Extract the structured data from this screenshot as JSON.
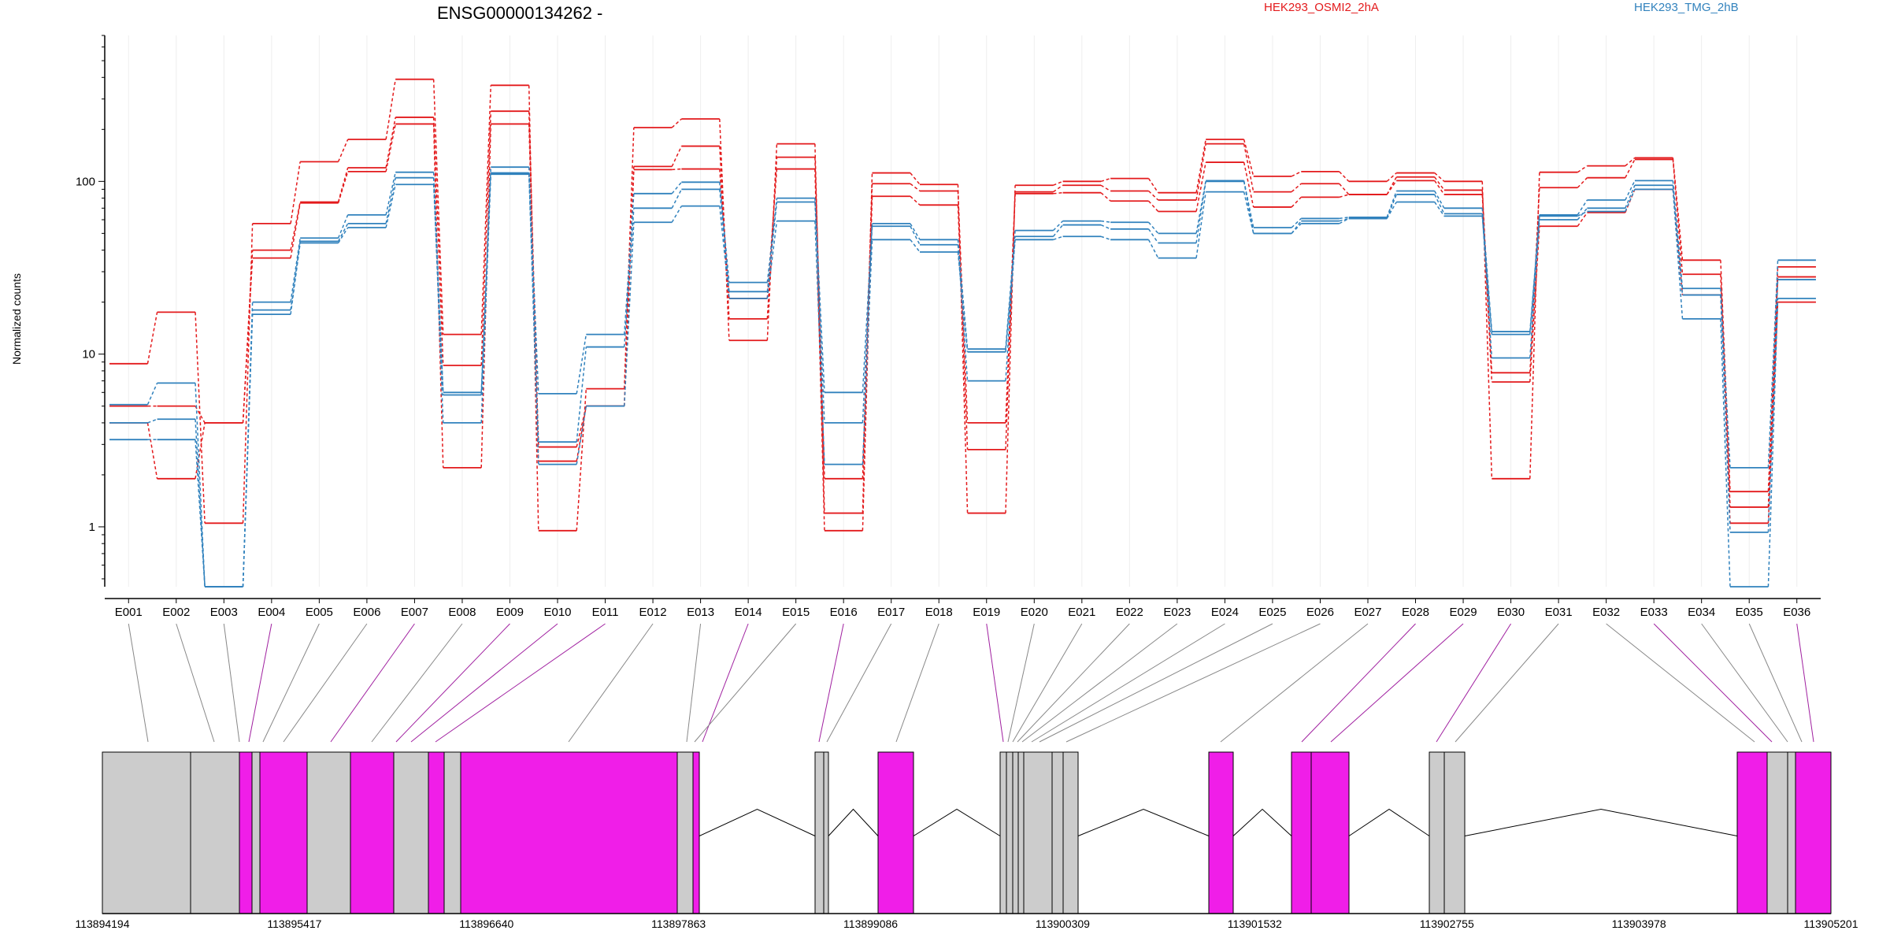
{
  "chart_data": {
    "type": "line",
    "title": "ENSG00000134262 -",
    "ylabel": "Normalized counts",
    "yscale": "log",
    "ylim": [
      0.45,
      700
    ],
    "yticks": [
      1,
      10,
      100
    ],
    "ytick_labels": [
      "1",
      "10",
      "100"
    ],
    "legend": [
      {
        "label": "HEK293_OSMI2_2hA",
        "color": "#e31a1c"
      },
      {
        "label": "HEK293_TMG_2hB",
        "color": "#3182bd"
      }
    ],
    "categories": [
      "E001",
      "E002",
      "E003",
      "E004",
      "E005",
      "E006",
      "E007",
      "E008",
      "E009",
      "E010",
      "E011",
      "E012",
      "E013",
      "E014",
      "E015",
      "E016",
      "E017",
      "E018",
      "E019",
      "E020",
      "E021",
      "E022",
      "E023",
      "E024",
      "E025",
      "E026",
      "E027",
      "E028",
      "E029",
      "E030",
      "E031",
      "E032",
      "E033",
      "E034",
      "E035",
      "E036"
    ],
    "series": [
      {
        "group": "HEK293_OSMI2_2hA",
        "color": "#e31a1c",
        "values": [
          8.8,
          17.5,
          1.05,
          57,
          130,
          175,
          390,
          13,
          360,
          0.95,
          6.3,
          205,
          230,
          12,
          165,
          1.2,
          112,
          96,
          1.2,
          95,
          100,
          104,
          86,
          175,
          107,
          114,
          100,
          112,
          100,
          1.9,
          113,
          123,
          137,
          35,
          1.6,
          32
        ]
      },
      {
        "group": "HEK293_OSMI2_2hA",
        "color": "#e31a1c",
        "values": [
          5.0,
          5.0,
          4.0,
          40,
          76,
          120,
          235,
          8.6,
          255,
          2.9,
          5.0,
          122,
          160,
          16,
          138,
          1.9,
          97,
          88,
          4.0,
          87,
          95,
          88,
          78,
          165,
          87,
          97,
          84,
          106,
          89,
          7.8,
          92,
          105,
          134,
          29,
          1.3,
          28
        ]
      },
      {
        "group": "HEK293_OSMI2_2hA",
        "color": "#e31a1c",
        "values": [
          4.0,
          1.9,
          4.0,
          36,
          75,
          114,
          215,
          2.2,
          215,
          2.4,
          5.0,
          117,
          118,
          21,
          118,
          0.95,
          82,
          73,
          2.8,
          85,
          86,
          77,
          67,
          129,
          71,
          81,
          84,
          101,
          84,
          6.9,
          55,
          66,
          90,
          22,
          1.05,
          20
        ]
      },
      {
        "group": "HEK293_TMG_2hB",
        "color": "#3182bd",
        "values": [
          5.1,
          6.8,
          0.45,
          20,
          47,
          64,
          113,
          6.0,
          121,
          5.9,
          13,
          85,
          99,
          26,
          80,
          6.0,
          57,
          46,
          10.7,
          52,
          59,
          58,
          50,
          101,
          54,
          61,
          62,
          88,
          70,
          13.5,
          64,
          78,
          101,
          24,
          2.2,
          35
        ]
      },
      {
        "group": "HEK293_TMG_2hB",
        "color": "#3182bd",
        "values": [
          4.0,
          4.2,
          0.45,
          18,
          45,
          57,
          105,
          4.0,
          112,
          3.1,
          11,
          70,
          90,
          23,
          76,
          4.0,
          55,
          43,
          7.0,
          48,
          56,
          53,
          44,
          100,
          50,
          59,
          61,
          84,
          65,
          9.5,
          60,
          70,
          95,
          22,
          0.93,
          27
        ]
      },
      {
        "group": "HEK293_TMG_2hB",
        "color": "#3182bd",
        "values": [
          3.2,
          3.2,
          0.45,
          17,
          44,
          54,
          96,
          5.8,
          110,
          2.3,
          5.0,
          58,
          72,
          21,
          59,
          2.3,
          46,
          39,
          10.3,
          46,
          48,
          46,
          36,
          87,
          50,
          57,
          61,
          76,
          63,
          13,
          63,
          67,
          90,
          16,
          0.45,
          21
        ]
      }
    ],
    "gene_model": {
      "axis_labels": [
        "113894194",
        "113895417",
        "113896640",
        "113897863",
        "113899086",
        "113900309",
        "113901532",
        "113902755",
        "113903978",
        "113905201"
      ],
      "highlighted_exons": [
        "E004",
        "E007",
        "E009",
        "E010",
        "E011",
        "E014",
        "E016",
        "E019",
        "E028",
        "E029",
        "E030",
        "E033",
        "E036"
      ],
      "highlight_color": "#f01ee8",
      "default_color": "#cccccc"
    }
  }
}
